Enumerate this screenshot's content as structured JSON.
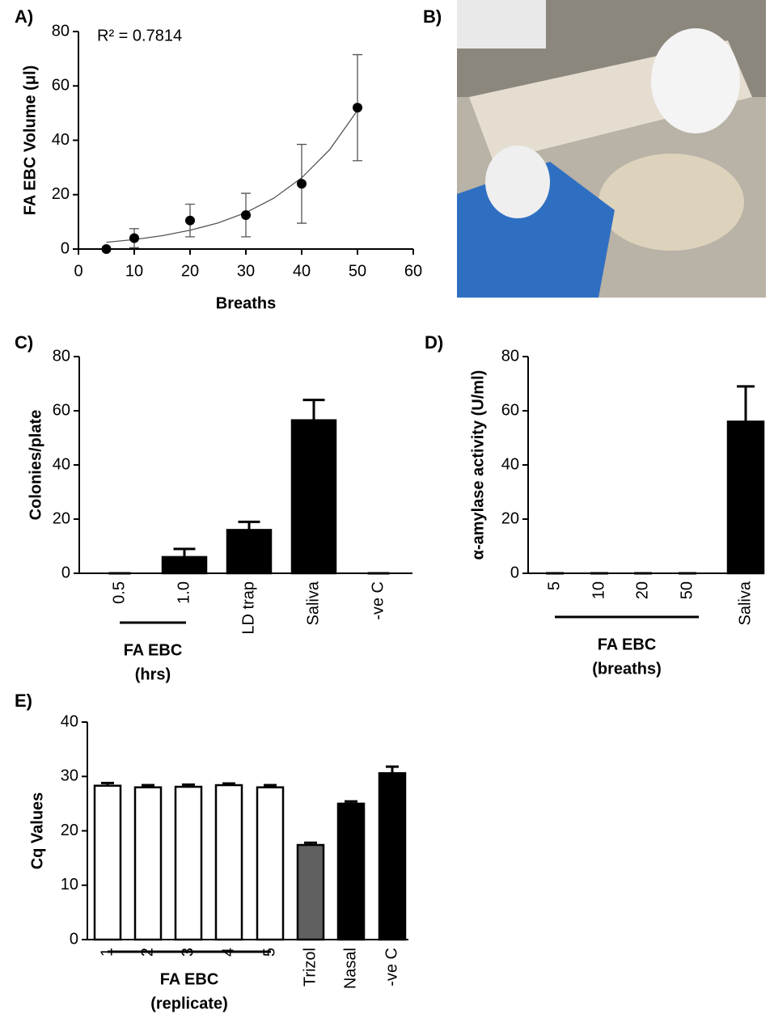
{
  "chart_data": [
    {
      "type": "scatter",
      "panel": "A)",
      "annotation": "R² = 0.7814",
      "y_label": "FA EBC Volume (μl)",
      "x_label": "Breaths",
      "x": [
        5,
        10,
        20,
        30,
        40,
        50
      ],
      "values": [
        0,
        4,
        10.5,
        12.5,
        24,
        52
      ],
      "errors": [
        0,
        3.5,
        6,
        8,
        14.5,
        19.5
      ],
      "color": "#000000",
      "fit": {
        "x": [
          5,
          10,
          15,
          20,
          25,
          30,
          35,
          40,
          45,
          50
        ],
        "values": [
          2.5,
          3.5,
          4.9,
          6.9,
          9.6,
          13.4,
          18.7,
          26.2,
          36.5,
          51
        ]
      },
      "xlim": [
        0,
        60
      ],
      "xticks": [
        0,
        10,
        20,
        30,
        40,
        50,
        60
      ],
      "ylim": [
        0,
        80
      ],
      "yticks": [
        0,
        20,
        40,
        60,
        80
      ]
    },
    {
      "type": "image",
      "panel": "B)"
    },
    {
      "type": "bar",
      "panel": "C)",
      "y_label": "Colonies/plate",
      "categories": [
        "0.5",
        "1.0",
        "LD trap",
        "Saliva",
        "-ve C"
      ],
      "values": [
        0,
        6,
        16,
        56.5,
        0
      ],
      "errors": [
        0,
        3,
        3,
        7.5,
        0
      ],
      "colors": [
        "#000000",
        "#000000",
        "#000000",
        "#000000",
        "#000000"
      ],
      "group_label": [
        "FA EBC",
        "(hrs)"
      ],
      "ylim": [
        0,
        80
      ],
      "yticks": [
        0,
        20,
        40,
        60,
        80
      ]
    },
    {
      "type": "bar",
      "panel": "D)",
      "y_label": "α-amylase activity (U/ml)",
      "categories": [
        "5",
        "10",
        "20",
        "50",
        "Saliva"
      ],
      "values": [
        0,
        0,
        0,
        0,
        56
      ],
      "errors": [
        0,
        0,
        0,
        0,
        13
      ],
      "colors": [
        "#000000",
        "#000000",
        "#000000",
        "#000000",
        "#000000"
      ],
      "group_label": [
        "FA EBC",
        "(breaths)"
      ],
      "ylim": [
        0,
        80
      ],
      "yticks": [
        0,
        20,
        40,
        60,
        80
      ]
    },
    {
      "type": "bar",
      "panel": "E)",
      "y_label": "Cq Values",
      "categories": [
        "1",
        "2",
        "3",
        "4",
        "5",
        "Trizol",
        "Nasal",
        "-ve C"
      ],
      "values": [
        28.3,
        28,
        28.1,
        28.4,
        28,
        17.4,
        25,
        30.6
      ],
      "errors": [
        0.5,
        0.4,
        0.4,
        0.3,
        0.4,
        0.4,
        0.4,
        1.2
      ],
      "colors": [
        "#ffffff",
        "#ffffff",
        "#ffffff",
        "#ffffff",
        "#ffffff",
        "#606060",
        "#000000",
        "#000000"
      ],
      "group_label": [
        "FA EBC",
        "(replicate)"
      ],
      "ylim": [
        0,
        40
      ],
      "yticks": [
        0,
        10,
        20,
        30,
        40
      ]
    }
  ]
}
